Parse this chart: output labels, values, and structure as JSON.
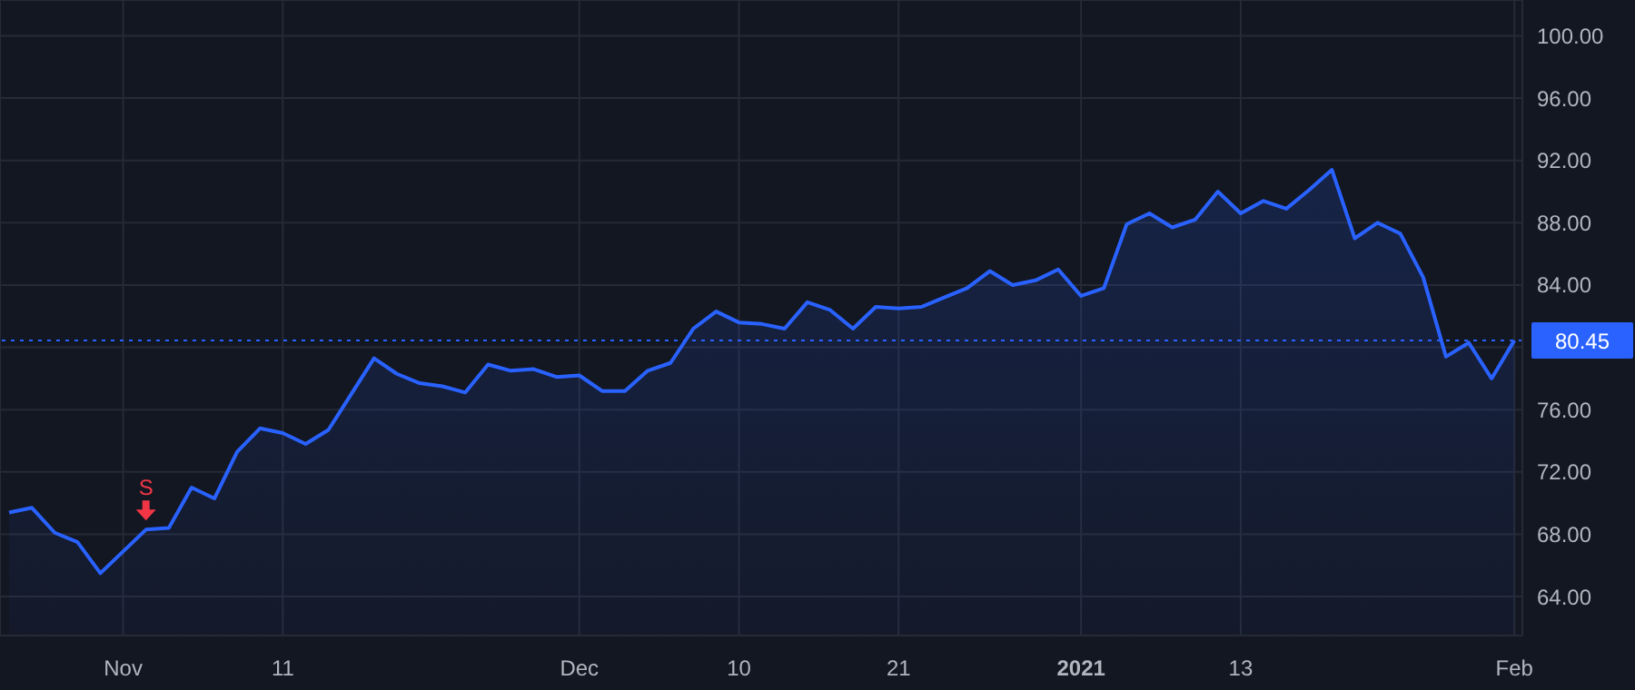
{
  "chart_data": {
    "type": "area",
    "categories": [
      null,
      null,
      null,
      null,
      null,
      "Nov",
      null,
      null,
      null,
      null,
      null,
      null,
      "11",
      null,
      null,
      null,
      null,
      null,
      null,
      null,
      null,
      null,
      null,
      null,
      null,
      "Dec",
      null,
      null,
      null,
      null,
      null,
      null,
      "10",
      null,
      null,
      null,
      null,
      null,
      null,
      "21",
      null,
      null,
      null,
      null,
      null,
      null,
      null,
      "2021",
      null,
      null,
      null,
      null,
      null,
      null,
      "13",
      null,
      null,
      null,
      null,
      null,
      null,
      null,
      null,
      null,
      null,
      null,
      "Feb"
    ],
    "series": [
      {
        "color": "#2962ff",
        "values": [
          69.4,
          69.7,
          68.1,
          67.5,
          65.5,
          66.9,
          68.3,
          68.4,
          71.0,
          70.3,
          73.3,
          74.8,
          74.5,
          73.8,
          74.7,
          77.0,
          79.3,
          78.3,
          77.7,
          77.5,
          77.1,
          78.9,
          78.5,
          78.6,
          78.1,
          78.2,
          77.2,
          77.2,
          78.5,
          79.0,
          81.2,
          82.3,
          81.6,
          81.5,
          81.2,
          82.9,
          82.4,
          81.2,
          82.6,
          82.5,
          82.6,
          83.2,
          83.8,
          84.9,
          84.0,
          84.3,
          85.0,
          83.3,
          83.8,
          87.9,
          88.6,
          87.7,
          88.2,
          90.0,
          88.6,
          89.4,
          88.9,
          90.1,
          91.4,
          87.0,
          88.0,
          87.3,
          84.5,
          79.4,
          80.3,
          78.0,
          80.45
        ]
      }
    ],
    "ylim": [
      61.5,
      102.3
    ],
    "yticks": [
      {
        "value": 64,
        "label": "64.00"
      },
      {
        "value": 68,
        "label": "68.00"
      },
      {
        "value": 72,
        "label": "72.00"
      },
      {
        "value": 76,
        "label": "76.00"
      },
      {
        "value": 80,
        "label": null
      },
      {
        "value": 84,
        "label": "84.00"
      },
      {
        "value": 88,
        "label": "88.00"
      },
      {
        "value": 92,
        "label": "92.00"
      },
      {
        "value": 96,
        "label": "96.00"
      },
      {
        "value": 100,
        "label": "100.00"
      }
    ],
    "grid": true,
    "ref_lines": [
      {
        "axis": "y",
        "value": 80.45,
        "label": "80.45",
        "color": "#2962ff",
        "line_style": "dotted"
      }
    ],
    "annotations": [
      {
        "text": "S",
        "y": 68.3
      }
    ]
  }
}
